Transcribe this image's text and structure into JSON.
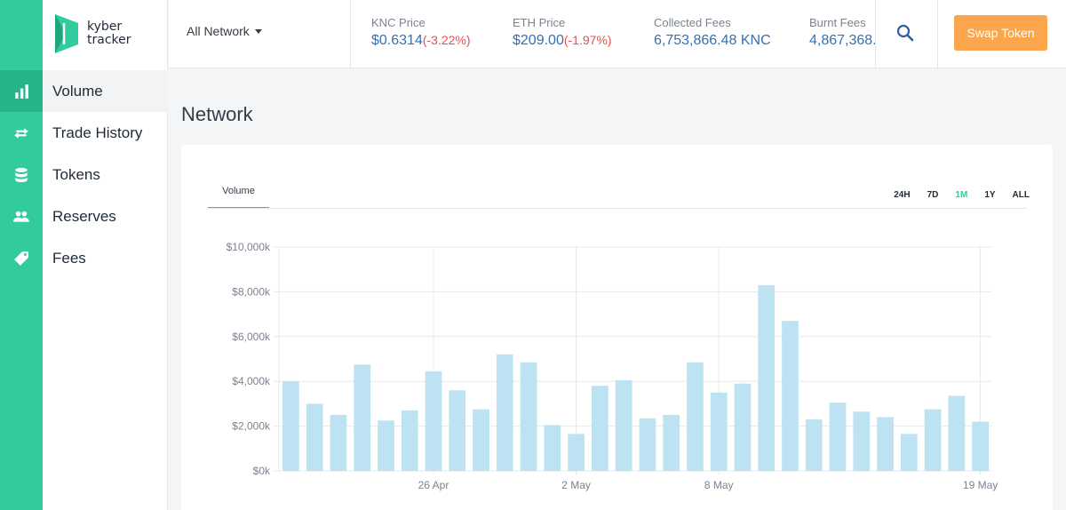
{
  "brand": {
    "logo_line1": "kyber",
    "logo_line2": "tracker",
    "accent": "#31cb9e"
  },
  "sidebar": {
    "items": [
      {
        "label": "Volume",
        "icon": "bar-chart-icon",
        "active": true
      },
      {
        "label": "Trade History",
        "icon": "swap-arrows-icon",
        "active": false
      },
      {
        "label": "Tokens",
        "icon": "database-icon",
        "active": false
      },
      {
        "label": "Reserves",
        "icon": "users-icon",
        "active": false
      },
      {
        "label": "Fees",
        "icon": "tag-icon",
        "active": false
      }
    ]
  },
  "header": {
    "network_select": "All Network",
    "knc_price": {
      "label": "KNC Price",
      "value": "$0.6314",
      "change": "(-3.22%)"
    },
    "eth_price": {
      "label": "ETH Price",
      "value": "$209.00",
      "change": "(-1.97%)"
    },
    "collected_fees": {
      "label": "Collected Fees",
      "value": "6,753,866.48 KNC"
    },
    "burnt_fees": {
      "label": "Burnt Fees",
      "value": "4,867,368."
    },
    "swap_button": "Swap Token"
  },
  "main": {
    "title": "Network",
    "tab": "Volume",
    "ranges": [
      "24H",
      "7D",
      "1M",
      "1Y",
      "ALL"
    ],
    "active_range": "1M"
  },
  "chart_data": {
    "type": "bar",
    "title": "",
    "xlabel": "",
    "ylabel": "",
    "ylim": [
      0,
      10000
    ],
    "y_ticks": [
      0,
      2000,
      4000,
      6000,
      8000,
      10000
    ],
    "y_tick_labels": [
      "$0k",
      "$2,000k",
      "$4,000k",
      "$6,000k",
      "$8,000k",
      "$10,000k"
    ],
    "x_tick_labels": [
      {
        "index": 6,
        "label": "26 Apr"
      },
      {
        "index": 12,
        "label": "2 May"
      },
      {
        "index": 18,
        "label": "8 May"
      },
      {
        "index": 29,
        "label": "19 May"
      }
    ],
    "values": [
      4000,
      3000,
      2500,
      4750,
      2250,
      2700,
      4450,
      3600,
      2750,
      5200,
      4850,
      2050,
      1650,
      3800,
      4050,
      2350,
      2500,
      4850,
      3500,
      3900,
      8300,
      6700,
      2300,
      3050,
      2650,
      2400,
      1650,
      2750,
      3350,
      2200
    ],
    "bar_color": "#bde3f3",
    "grid": true
  }
}
